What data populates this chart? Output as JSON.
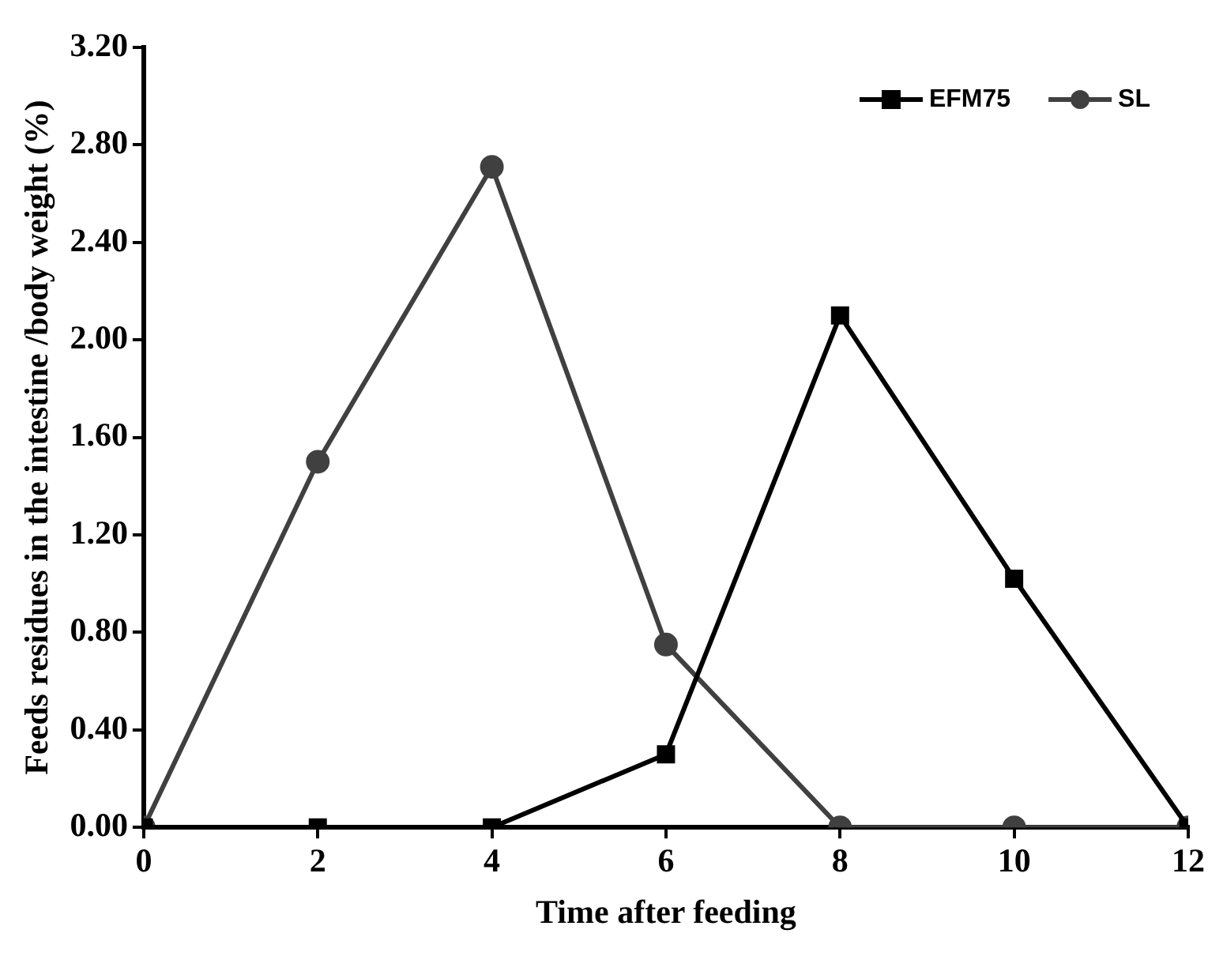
{
  "chart_data": {
    "type": "line",
    "xlabel": "Time after feeding",
    "ylabel": "Feeds residues in the intestine /body weight (%)",
    "x": [
      0,
      2,
      4,
      6,
      8,
      10,
      12
    ],
    "series": [
      {
        "name": "EFM75",
        "color": "#000000",
        "marker": "square",
        "values": [
          0,
          0,
          0,
          0.3,
          2.1,
          1.02,
          0
        ]
      },
      {
        "name": "SL",
        "color": "#404040",
        "marker": "circle",
        "values": [
          0,
          1.5,
          2.71,
          0.75,
          0,
          0,
          0
        ]
      }
    ],
    "xlim": [
      0,
      12
    ],
    "xticks": [
      0,
      2,
      4,
      6,
      8,
      10,
      12
    ],
    "ylim": [
      0,
      3.2
    ],
    "yticks": [
      {
        "value": 0,
        "label": "0.00"
      },
      {
        "value": 0.4,
        "label": "0.40"
      },
      {
        "value": 0.8,
        "label": "0.80"
      },
      {
        "value": 1.2,
        "label": "1.20"
      },
      {
        "value": 1.6,
        "label": "1.60"
      },
      {
        "value": 2.0,
        "label": "2.00"
      },
      {
        "value": 2.4,
        "label": "2.40"
      },
      {
        "value": 2.8,
        "label": "2.80"
      },
      {
        "value": 3.2,
        "label": "3.20"
      }
    ],
    "grid": false,
    "legend": "top right",
    "line_style": "solid"
  }
}
